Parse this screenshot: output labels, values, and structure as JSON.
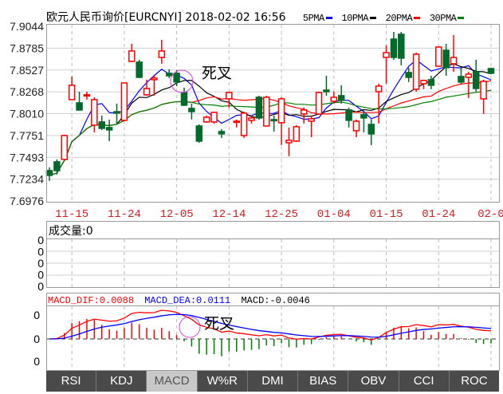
{
  "header": {
    "title": "欧元人民币询价[EURCNYI] 2018-02-02 16:56",
    "legend": [
      {
        "label": "5PMA",
        "color": "#0000ff"
      },
      {
        "label": "10PMA",
        "color": "#000000"
      },
      {
        "label": "20PMA",
        "color": "#ff0000"
      },
      {
        "label": "30PMA",
        "color": "#008000"
      }
    ]
  },
  "annotations": {
    "price_cross": "死叉",
    "macd_cross": "死叉"
  },
  "volume": {
    "title": "成交量:0",
    "y_ticks": [
      "0",
      "0",
      "0",
      "0",
      "0"
    ]
  },
  "macd": {
    "dif_label": "MACD_DIF:0.0088",
    "dea_label": "MACD_DEA:0.0111",
    "macd_label": "MACD:-0.0046",
    "y_ticks": [
      "0",
      "0",
      "0"
    ],
    "dif_color": "#ff0000",
    "dea_color": "#0000ff",
    "up_bar_color": "#ff0000",
    "down_bar_color": "#008000"
  },
  "tabs": [
    {
      "label": "RSI"
    },
    {
      "label": "KDJ"
    },
    {
      "label": "MACD",
      "active": true
    },
    {
      "label": "W%R"
    },
    {
      "label": "DMI"
    },
    {
      "label": "BIAS"
    },
    {
      "label": "OBV"
    },
    {
      "label": "CCI"
    },
    {
      "label": "ROC"
    }
  ],
  "chart_data": {
    "type": "candlestick",
    "title": "欧元人民币询价[EURCNYI] 2018-02-02 16:56",
    "ylim": [
      7.6976,
      7.9044
    ],
    "y_ticks": [
      "7.9044",
      "7.8785",
      "7.8527",
      "7.8268",
      "7.8010",
      "7.7751",
      "7.7493",
      "7.7234",
      "7.6976"
    ],
    "x_ticks": [
      {
        "label": "11-15",
        "index": 3
      },
      {
        "label": "11-24",
        "index": 10
      },
      {
        "label": "12-05",
        "index": 17
      },
      {
        "label": "12-14",
        "index": 24
      },
      {
        "label": "12-25",
        "index": 31
      },
      {
        "label": "01-04",
        "index": 38
      },
      {
        "label": "01-15",
        "index": 45
      },
      {
        "label": "01-24",
        "index": 52
      },
      {
        "label": "02-0",
        "index": 59
      }
    ],
    "up_color": "#ff0000",
    "down_color": "#006a2a",
    "ma_periods": [
      5,
      10,
      20,
      30
    ],
    "ohlc": [
      [
        7.7336,
        7.7374,
        7.7213,
        7.7279
      ],
      [
        7.744,
        7.7468,
        7.7289,
        7.7336
      ],
      [
        7.7468,
        7.7761,
        7.7459,
        7.7751
      ],
      [
        7.8176,
        7.845,
        7.8176,
        7.8346
      ],
      [
        7.8138,
        7.827,
        7.8044,
        7.8053
      ],
      [
        7.8223,
        7.827,
        7.8176,
        7.8233
      ],
      [
        7.7874,
        7.8204,
        7.7789,
        7.8176
      ],
      [
        7.7912,
        7.7987,
        7.7817,
        7.7836
      ],
      [
        7.7846,
        7.794,
        7.7685,
        7.7817
      ],
      [
        7.8034,
        7.8129,
        7.7893,
        7.8016
      ],
      [
        7.7931,
        7.8374,
        7.7921,
        7.8374
      ],
      [
        7.8629,
        7.8837,
        7.862,
        7.8752
      ],
      [
        7.862,
        7.8648,
        7.8431,
        7.844
      ],
      [
        7.8233,
        7.8412,
        7.8223,
        7.8308
      ],
      [
        7.8412,
        7.8469,
        7.8223,
        7.8431
      ],
      [
        7.8676,
        7.8884,
        7.8601,
        7.8752
      ],
      [
        7.8488,
        7.8535,
        7.8431,
        7.8459
      ],
      [
        7.8488,
        7.8525,
        7.8336,
        7.8384
      ],
      [
        7.8261,
        7.8318,
        7.81,
        7.811
      ],
      [
        7.8072,
        7.8129,
        7.794,
        7.8034
      ],
      [
        7.7864,
        7.7883,
        7.7666,
        7.7685
      ],
      [
        7.7912,
        7.7987,
        7.7902,
        7.7968
      ],
      [
        7.7912,
        7.8034,
        7.7893,
        7.8025
      ],
      [
        7.7798,
        7.7827,
        7.7723,
        7.777
      ],
      [
        7.8185,
        7.827,
        7.8082,
        7.8261
      ],
      [
        7.7912,
        7.794,
        7.7846,
        7.7921
      ],
      [
        7.7751,
        7.8034,
        7.7723,
        7.8016
      ],
      [
        7.7931,
        7.7987,
        7.7893,
        7.7959
      ],
      [
        7.8204,
        7.8223,
        7.794,
        7.7959
      ],
      [
        7.7864,
        7.8223,
        7.7864,
        7.8204
      ],
      [
        7.794,
        7.7987,
        7.7798,
        7.7931
      ],
      [
        7.7902,
        7.8204,
        7.7638,
        7.8185
      ],
      [
        7.7666,
        7.7846,
        7.7506,
        7.7695
      ],
      [
        7.7685,
        7.7874,
        7.7676,
        7.7855
      ],
      [
        7.8006,
        7.8082,
        7.7893,
        7.8053
      ],
      [
        7.7921,
        7.7987,
        7.7732,
        7.7949
      ],
      [
        7.8006,
        7.827,
        7.7997,
        7.8261
      ],
      [
        7.8289,
        7.8459,
        7.8223,
        7.827
      ],
      [
        7.8157,
        7.827,
        7.8129,
        7.8204
      ],
      [
        7.8223,
        7.8346,
        7.8129,
        7.8167
      ],
      [
        7.8053,
        7.8082,
        7.7846,
        7.7931
      ],
      [
        7.7808,
        7.794,
        7.7732,
        7.7921
      ],
      [
        7.7997,
        7.8034,
        7.7789,
        7.7959
      ],
      [
        7.7883,
        7.794,
        7.7638,
        7.777
      ],
      [
        7.827,
        7.8365,
        7.7893,
        7.8336
      ],
      [
        7.8676,
        7.8818,
        7.8365,
        7.8733
      ],
      [
        7.8893,
        7.8978,
        7.8648,
        7.8676
      ],
      [
        7.895,
        7.8978,
        7.8582,
        7.8667
      ],
      [
        7.8497,
        7.8554,
        7.8384,
        7.844
      ],
      [
        7.8299,
        7.8733,
        7.827,
        7.8714
      ],
      [
        7.8365,
        7.8412,
        7.8299,
        7.8403
      ],
      [
        7.8412,
        7.8459,
        7.8299,
        7.8346
      ],
      [
        7.8572,
        7.8808,
        7.8563,
        7.8799
      ],
      [
        7.8761,
        7.8837,
        7.8459,
        7.8554
      ],
      [
        7.8601,
        7.8941,
        7.8506,
        7.8676
      ],
      [
        7.845,
        7.8554,
        7.8365,
        7.8384
      ],
      [
        7.844,
        7.8506,
        7.8195,
        7.8478
      ],
      [
        7.8506,
        7.8648,
        7.827,
        7.8308
      ],
      [
        7.8185,
        7.8412,
        7.8006,
        7.8393
      ],
      [
        7.8544,
        7.8554,
        7.8478,
        7.8488
      ]
    ]
  }
}
